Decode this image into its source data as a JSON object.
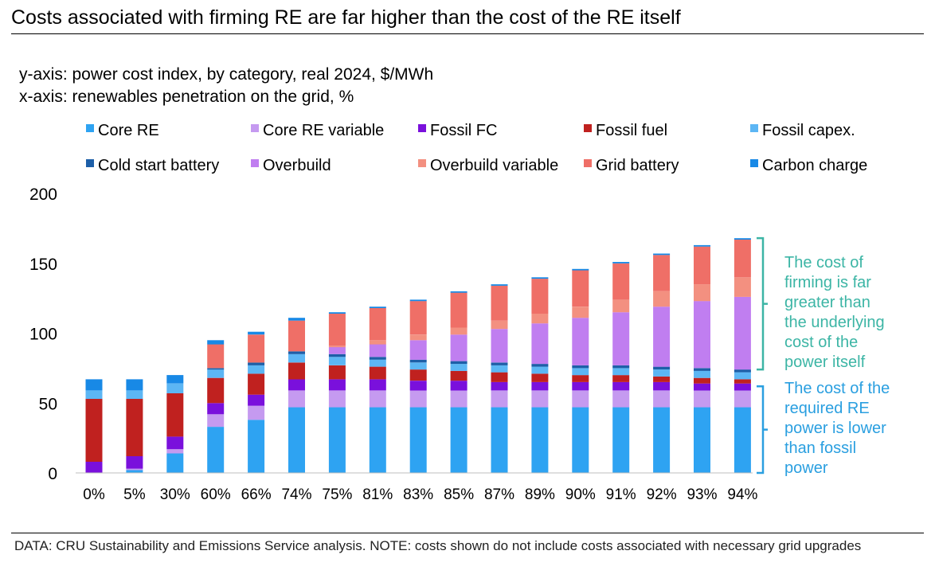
{
  "title": "Costs associated with firming RE are far higher than the cost of the RE itself",
  "y_axis_note": "y-axis: power cost index, by category, real 2024, $/MWh",
  "x_axis_note": "x-axis: renewables penetration on the grid, %",
  "footer": "DATA: CRU Sustainability and Emissions Service analysis. NOTE: costs shown do not include costs associated with necessary grid upgrades",
  "chart_data": {
    "type": "bar",
    "stacked": true,
    "ylim": [
      0,
      200
    ],
    "yticks": [
      0,
      50,
      100,
      150,
      200
    ],
    "categories": [
      "0%",
      "5%",
      "30%",
      "60%",
      "66%",
      "74%",
      "75%",
      "81%",
      "83%",
      "85%",
      "87%",
      "89%",
      "90%",
      "91%",
      "92%",
      "93%",
      "94%"
    ],
    "series": [
      {
        "name": "Core RE",
        "color": "#2ea3f2",
        "values": [
          0,
          2,
          14,
          33,
          38,
          47,
          47,
          47,
          47,
          47,
          47,
          47,
          47,
          47,
          47,
          47,
          47
        ]
      },
      {
        "name": "Core RE variable",
        "color": "#c59af0",
        "values": [
          0,
          1,
          3,
          9,
          10,
          12,
          12,
          12,
          12,
          12,
          12,
          12,
          12,
          12,
          12,
          12,
          12
        ]
      },
      {
        "name": "Fossil FC",
        "color": "#7a10dc",
        "values": [
          8,
          9,
          9,
          8,
          8,
          8,
          8,
          8,
          7,
          7,
          6,
          6,
          6,
          6,
          6,
          5,
          5
        ]
      },
      {
        "name": "Fossil fuel",
        "color": "#c0211f",
        "values": [
          45,
          41,
          31,
          18,
          15,
          12,
          10,
          9,
          8,
          7,
          7,
          6,
          5,
          5,
          4,
          4,
          3
        ]
      },
      {
        "name": "Fossil capex.",
        "color": "#5cb6f4",
        "values": [
          6,
          6,
          7,
          6,
          6,
          6,
          6,
          5,
          5,
          5,
          5,
          5,
          5,
          5,
          5,
          5,
          5
        ]
      },
      {
        "name": "Cold start battery",
        "color": "#1d5fa8",
        "values": [
          0,
          0,
          0,
          1,
          2,
          2,
          2,
          2,
          2,
          2,
          2,
          2,
          2,
          2,
          2,
          2,
          2
        ]
      },
      {
        "name": "Overbuild",
        "color": "#c07ef0",
        "values": [
          0,
          0,
          0,
          0,
          0,
          0,
          5,
          9,
          14,
          19,
          24,
          29,
          34,
          38,
          43,
          48,
          52
        ]
      },
      {
        "name": "Overbuild variable",
        "color": "#f39080",
        "values": [
          0,
          0,
          0,
          0,
          0,
          0,
          1,
          3,
          4,
          5,
          6,
          7,
          8,
          9,
          11,
          12,
          14
        ]
      },
      {
        "name": "Grid battery",
        "color": "#ef6f67",
        "values": [
          0,
          0,
          0,
          17,
          20,
          22,
          23,
          23,
          24,
          25,
          25,
          25,
          26,
          26,
          26,
          27,
          27
        ]
      },
      {
        "name": "Carbon charge",
        "color": "#1889e6",
        "values": [
          8,
          8,
          6,
          3,
          2,
          2,
          1,
          1,
          1,
          1,
          1,
          1,
          1,
          1,
          1,
          1,
          1
        ]
      }
    ],
    "annotations": [
      {
        "id": "firming",
        "text": [
          "The cost of",
          "firming is far",
          "greater than",
          "the underlying",
          "cost of the",
          "power itself"
        ],
        "color": "#3cb5a5",
        "y_from": 74,
        "y_to": 168
      },
      {
        "id": "re",
        "text": [
          "The cost of the",
          "required RE",
          "power is lower",
          "than fossil",
          "power"
        ],
        "color": "#2a9fe0",
        "y_from": 0,
        "y_to": 62
      }
    ]
  }
}
